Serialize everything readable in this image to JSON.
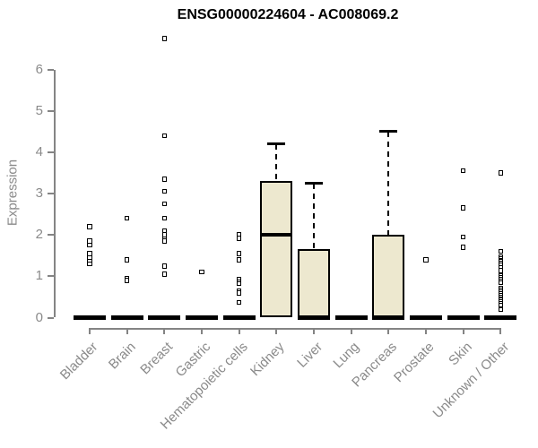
{
  "chart_data": {
    "type": "boxplot",
    "title": "ENSG00000224604 - AC008069.2",
    "ylabel": "Expression",
    "xlabel": "",
    "ylim": [
      0,
      6
    ],
    "yticks": [
      0,
      1,
      2,
      3,
      4,
      5,
      6
    ],
    "grid": false,
    "legend": "none",
    "categories": [
      "Bladder",
      "Brain",
      "Breast",
      "Gastric",
      "Hematopoietic cells",
      "Kidney",
      "Liver",
      "Lung",
      "Pancreas",
      "Prostate",
      "Skin",
      "Unknown / Other"
    ],
    "series": [
      {
        "name": "Bladder",
        "q1": 0,
        "median": 0,
        "q3": 0,
        "whisker_low": 0,
        "whisker_high": 0,
        "outliers": [
          2.2,
          1.85,
          1.75,
          1.55,
          1.45,
          1.35,
          1.3
        ]
      },
      {
        "name": "Brain",
        "q1": 0,
        "median": 0,
        "q3": 0,
        "whisker_low": 0,
        "whisker_high": 0,
        "outliers": [
          2.4,
          1.4,
          0.95,
          0.9
        ]
      },
      {
        "name": "Breast",
        "q1": 0,
        "median": 0,
        "q3": 0,
        "whisker_low": 0,
        "whisker_high": 0,
        "outliers": [
          6.75,
          4.4,
          3.35,
          3.05,
          2.75,
          2.4,
          2.1,
          2.0,
          1.9,
          1.85,
          1.25,
          1.05
        ]
      },
      {
        "name": "Gastric",
        "q1": 0,
        "median": 0,
        "q3": 0,
        "whisker_low": 0,
        "whisker_high": 0,
        "outliers": [
          1.1
        ]
      },
      {
        "name": "Hematopoietic cells",
        "q1": 0,
        "median": 0,
        "q3": 0,
        "whisker_low": 0,
        "whisker_high": 0,
        "outliers": [
          2.0,
          1.92,
          1.55,
          1.4,
          0.92,
          0.87,
          0.82,
          0.65,
          0.6,
          0.37
        ]
      },
      {
        "name": "Kidney",
        "q1": 0,
        "median": 2.0,
        "q3": 3.3,
        "whisker_low": 0,
        "whisker_high": 4.2,
        "outliers": []
      },
      {
        "name": "Liver",
        "q1": 0,
        "median": 0,
        "q3": 1.65,
        "whisker_low": 0,
        "whisker_high": 3.25,
        "outliers": []
      },
      {
        "name": "Lung",
        "q1": 0,
        "median": 0,
        "q3": 0,
        "whisker_low": 0,
        "whisker_high": 0,
        "outliers": []
      },
      {
        "name": "Pancreas",
        "q1": 0,
        "median": 0,
        "q3": 2.0,
        "whisker_low": 0,
        "whisker_high": 4.5,
        "outliers": []
      },
      {
        "name": "Prostate",
        "q1": 0,
        "median": 0,
        "q3": 0,
        "whisker_low": 0,
        "whisker_high": 0,
        "outliers": [
          1.4
        ]
      },
      {
        "name": "Skin",
        "q1": 0,
        "median": 0,
        "q3": 0,
        "whisker_low": 0,
        "whisker_high": 0,
        "outliers": [
          3.55,
          2.65,
          1.95,
          1.7
        ]
      },
      {
        "name": "Unknown / Other",
        "q1": 0,
        "median": 0,
        "q3": 0,
        "whisker_low": 0,
        "whisker_high": 0,
        "outliers": [
          3.5,
          1.6,
          1.47,
          1.43,
          1.39,
          1.35,
          1.31,
          1.28,
          1.2,
          1.14,
          1.01,
          0.97,
          0.93,
          0.89,
          0.85,
          0.7,
          0.66,
          0.62,
          0.58,
          0.54,
          0.5,
          0.46,
          0.42,
          0.38,
          0.34,
          0.3,
          0.19
        ]
      }
    ],
    "colors": {
      "box_fill": "#EDE8CF",
      "box_stroke": "#000000",
      "median": "#000000",
      "outlier_fill": "#FFFFFF",
      "axis": "#848484",
      "tick_label": "#8A8A8A",
      "title": "#000000"
    }
  }
}
